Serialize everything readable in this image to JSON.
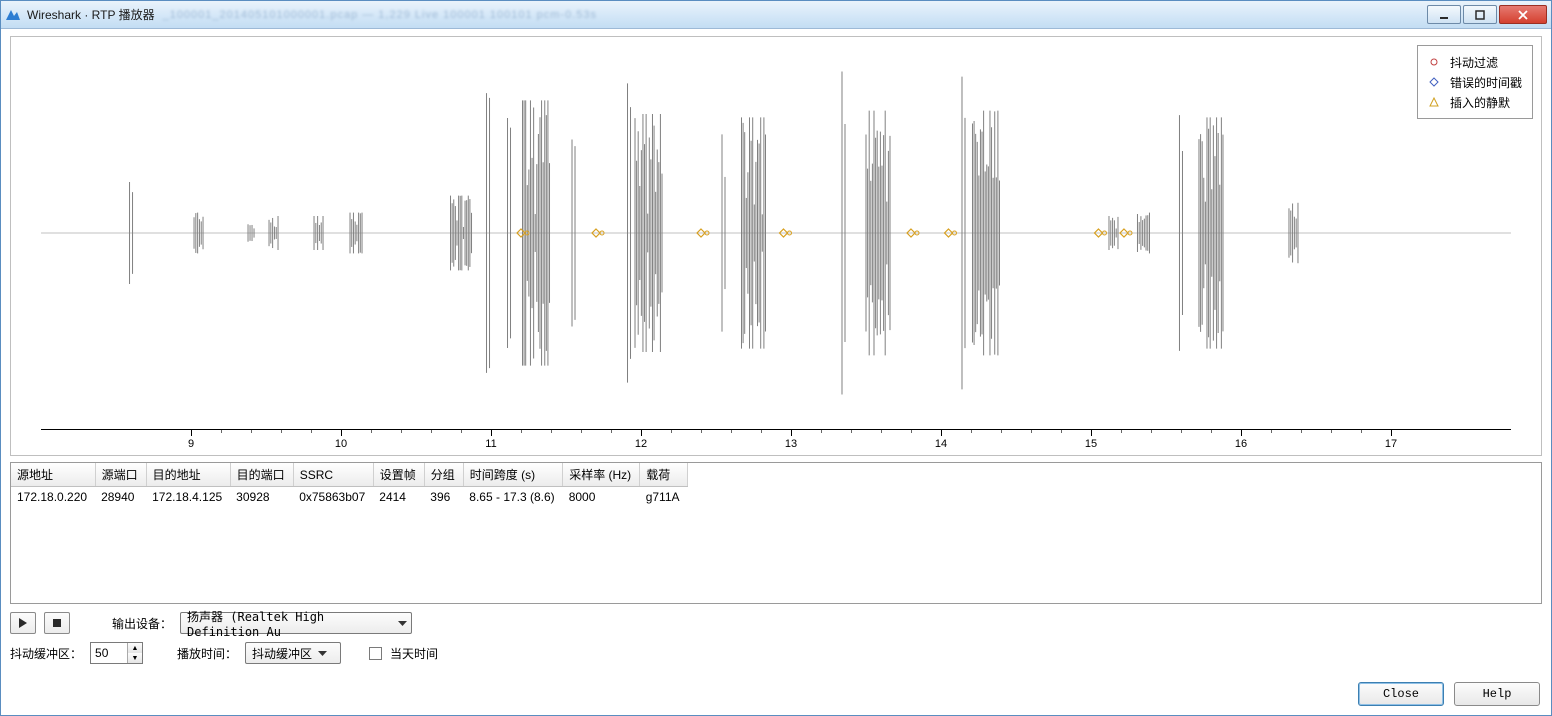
{
  "window": {
    "title": "Wireshark · RTP 播放器",
    "blurred_subtitle": "_100001_201405101000001.pcap  —  1,229        Live  100001   100101  pcm-0.53s"
  },
  "legend": {
    "items": [
      {
        "label": "抖动过滤",
        "marker": "circle",
        "color": "#c04040"
      },
      {
        "label": "错误的时间戳",
        "marker": "diamond",
        "color": "#4060c0"
      },
      {
        "label": "插入的静默",
        "marker": "triangle",
        "color": "#d0a020"
      }
    ]
  },
  "waveform": {
    "axis_color": "#000000",
    "wave_color": "#808080",
    "marker_color": "#d8a020",
    "background": "#ffffff",
    "centerline_y": 196,
    "x_range": [
      8.0,
      17.8
    ],
    "x_major_ticks": [
      9,
      10,
      11,
      12,
      13,
      14,
      15,
      16,
      17
    ],
    "x_minor_count_between": 4,
    "bursts": [
      {
        "t": 8.6,
        "w": 0.02,
        "amp": 0.3
      },
      {
        "t": 9.05,
        "w": 0.06,
        "amp": 0.12
      },
      {
        "t": 9.4,
        "w": 0.04,
        "amp": 0.06
      },
      {
        "t": 9.55,
        "w": 0.06,
        "amp": 0.1
      },
      {
        "t": 9.85,
        "w": 0.06,
        "amp": 0.1
      },
      {
        "t": 10.1,
        "w": 0.08,
        "amp": 0.12
      },
      {
        "t": 10.8,
        "w": 0.14,
        "amp": 0.22
      },
      {
        "t": 10.98,
        "w": 0.02,
        "amp": 0.95
      },
      {
        "t": 11.12,
        "w": 0.02,
        "amp": 0.8
      },
      {
        "t": 11.3,
        "w": 0.18,
        "amp": 0.78
      },
      {
        "t": 11.55,
        "w": 0.02,
        "amp": 0.55
      },
      {
        "t": 11.92,
        "w": 0.02,
        "amp": 0.88
      },
      {
        "t": 12.05,
        "w": 0.18,
        "amp": 0.7
      },
      {
        "t": 12.55,
        "w": 0.02,
        "amp": 0.58
      },
      {
        "t": 12.75,
        "w": 0.16,
        "amp": 0.68
      },
      {
        "t": 13.35,
        "w": 0.02,
        "amp": 0.95
      },
      {
        "t": 13.58,
        "w": 0.16,
        "amp": 0.72
      },
      {
        "t": 14.15,
        "w": 0.02,
        "amp": 0.92
      },
      {
        "t": 14.3,
        "w": 0.18,
        "amp": 0.72
      },
      {
        "t": 15.15,
        "w": 0.06,
        "amp": 0.1
      },
      {
        "t": 15.35,
        "w": 0.08,
        "amp": 0.12
      },
      {
        "t": 15.6,
        "w": 0.02,
        "amp": 0.9
      },
      {
        "t": 15.8,
        "w": 0.16,
        "amp": 0.68
      },
      {
        "t": 16.35,
        "w": 0.06,
        "amp": 0.18
      }
    ],
    "markers_t": [
      11.2,
      11.7,
      12.4,
      12.95,
      13.8,
      14.05,
      15.05,
      15.22
    ]
  },
  "table": {
    "columns": [
      "源地址",
      "源端口",
      "目的地址",
      "目的端口",
      "SSRC",
      "设置帧",
      "分组",
      "时间跨度 (s)",
      "采样率 (Hz)",
      "载荷"
    ],
    "rows": [
      [
        "172.18.0.220",
        "28940",
        "172.18.4.125",
        "30928",
        "0x75863b07",
        "2414",
        "396",
        "8.65 - 17.3 (8.6)",
        "8000",
        "g711A"
      ]
    ]
  },
  "controls": {
    "output_device_label": "输出设备：",
    "output_device_value": "扬声器 (Realtek High Definition Au",
    "jitter_label": "抖动缓冲区：",
    "jitter_value": "50",
    "playtime_label": "播放时间：",
    "playtime_value": "抖动缓冲区",
    "today_label": "当天时间"
  },
  "buttons": {
    "close": "Close",
    "help": "Help"
  }
}
